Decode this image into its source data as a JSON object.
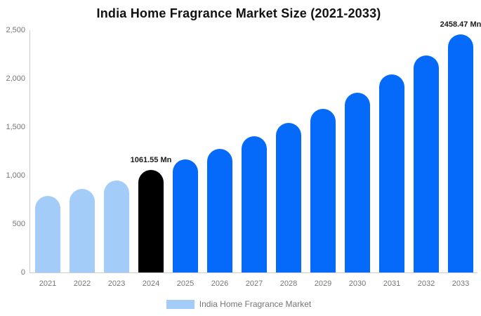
{
  "title": "India Home Fragrance Market Size (2021-2033)",
  "colors": {
    "historical": "#A3CDF8",
    "base_year": "#000000",
    "forecast": "#0569FA",
    "axis_line": "#cccccc",
    "axis_text": "#757575",
    "label_text": "#1a1a1a"
  },
  "legend": {
    "label": "India Home Fragrance Market",
    "swatch_color": "#A3CDF8"
  },
  "chart_data": {
    "type": "bar",
    "title": "India Home Fragrance Market Size (2021-2033)",
    "unit": "Mn",
    "categories": [
      "2021",
      "2022",
      "2023",
      "2024",
      "2025",
      "2026",
      "2027",
      "2028",
      "2029",
      "2030",
      "2031",
      "2032",
      "2033"
    ],
    "values": [
      790,
      862,
      950,
      1061.55,
      1165,
      1279,
      1404,
      1540,
      1692,
      1856,
      2040,
      2238,
      2458.47
    ],
    "bar_roles": [
      "historical",
      "historical",
      "historical",
      "base_year",
      "forecast",
      "forecast",
      "forecast",
      "forecast",
      "forecast",
      "forecast",
      "forecast",
      "forecast",
      "forecast"
    ],
    "annotations": [
      {
        "category": "2024",
        "text": "1061.55 Mn"
      },
      {
        "category": "2033",
        "text": "2458.47 Mn"
      }
    ],
    "xlabel": "",
    "ylabel": "",
    "ylim": [
      0,
      2500
    ],
    "ytick_labels": [
      "0",
      "500",
      "1,000",
      "1,500",
      "2,000",
      "2,500"
    ],
    "grid": false,
    "legend_position": "bottom",
    "series_name": "India Home Fragrance Market"
  }
}
